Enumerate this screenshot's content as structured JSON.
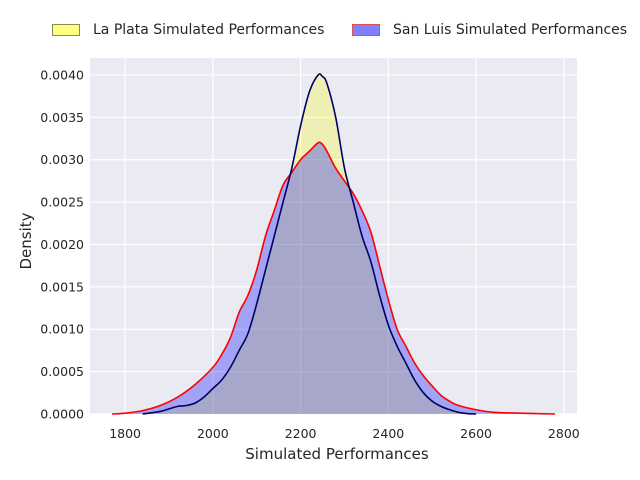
{
  "chart_data": {
    "type": "area",
    "title": "",
    "xlabel": "Simulated Performances",
    "ylabel": "Density",
    "xlim": [
      1720,
      2830
    ],
    "ylim": [
      0,
      0.0042
    ],
    "x_ticks": [
      1800,
      2000,
      2200,
      2400,
      2600,
      2800
    ],
    "y_ticks": [
      0.0,
      0.0005,
      0.001,
      0.0015,
      0.002,
      0.0025,
      0.003,
      0.0035,
      0.004
    ],
    "x_tick_labels": [
      "1800",
      "2000",
      "2200",
      "2400",
      "2600",
      "2800"
    ],
    "y_tick_labels": [
      "0.0000",
      "0.0005",
      "0.0010",
      "0.0015",
      "0.0020",
      "0.0025",
      "0.0030",
      "0.0035",
      "0.0040"
    ],
    "grid": true,
    "legend_position": "top-center",
    "background": "#eaeaf2",
    "series": [
      {
        "name": "La Plata Simulated Performances",
        "fill": "#ffff00",
        "fill_alpha": 0.25,
        "line": "#000066",
        "legend_fill": "#ffff80",
        "legend_edge": "#8a8a50",
        "points": [
          [
            1840,
            0
          ],
          [
            1880,
            3e-05
          ],
          [
            1900,
            6e-05
          ],
          [
            1920,
            9e-05
          ],
          [
            1940,
            0.0001
          ],
          [
            1960,
            0.00013
          ],
          [
            1980,
            0.0002
          ],
          [
            2000,
            0.0003
          ],
          [
            2020,
            0.0004
          ],
          [
            2040,
            0.00055
          ],
          [
            2060,
            0.00075
          ],
          [
            2080,
            0.00095
          ],
          [
            2100,
            0.0013
          ],
          [
            2120,
            0.0017
          ],
          [
            2140,
            0.0021
          ],
          [
            2160,
            0.0025
          ],
          [
            2180,
            0.0029
          ],
          [
            2200,
            0.0034
          ],
          [
            2220,
            0.0038
          ],
          [
            2240,
            0.004
          ],
          [
            2250,
            0.00398
          ],
          [
            2260,
            0.0039
          ],
          [
            2280,
            0.0035
          ],
          [
            2300,
            0.0029
          ],
          [
            2320,
            0.0025
          ],
          [
            2340,
            0.0021
          ],
          [
            2360,
            0.0018
          ],
          [
            2380,
            0.0014
          ],
          [
            2400,
            0.00105
          ],
          [
            2420,
            0.0008
          ],
          [
            2440,
            0.0006
          ],
          [
            2460,
            0.0004
          ],
          [
            2480,
            0.00025
          ],
          [
            2500,
            0.00015
          ],
          [
            2520,
            9e-05
          ],
          [
            2540,
            5e-05
          ],
          [
            2560,
            2e-05
          ],
          [
            2580,
            5e-06
          ],
          [
            2600,
            0
          ]
        ]
      },
      {
        "name": "San Luis Simulated Performances",
        "fill": "#0000ff",
        "fill_alpha": 0.3,
        "line": "#ff0000",
        "legend_fill": "#8080ff",
        "legend_edge": "#e05050",
        "points": [
          [
            1770,
            0
          ],
          [
            1800,
            1e-05
          ],
          [
            1840,
            4e-05
          ],
          [
            1880,
            0.0001
          ],
          [
            1920,
            0.0002
          ],
          [
            1960,
            0.00035
          ],
          [
            2000,
            0.00055
          ],
          [
            2020,
            0.0007
          ],
          [
            2040,
            0.0009
          ],
          [
            2060,
            0.0012
          ],
          [
            2080,
            0.0014
          ],
          [
            2100,
            0.0017
          ],
          [
            2120,
            0.0021
          ],
          [
            2140,
            0.0024
          ],
          [
            2160,
            0.0027
          ],
          [
            2180,
            0.00285
          ],
          [
            2200,
            0.003
          ],
          [
            2220,
            0.0031
          ],
          [
            2240,
            0.0032
          ],
          [
            2250,
            0.00318
          ],
          [
            2260,
            0.0031
          ],
          [
            2280,
            0.0029
          ],
          [
            2300,
            0.00275
          ],
          [
            2320,
            0.0026
          ],
          [
            2340,
            0.0024
          ],
          [
            2360,
            0.00215
          ],
          [
            2380,
            0.00175
          ],
          [
            2400,
            0.00135
          ],
          [
            2420,
            0.001
          ],
          [
            2440,
            0.0008
          ],
          [
            2460,
            0.0006
          ],
          [
            2480,
            0.00045
          ],
          [
            2500,
            0.00033
          ],
          [
            2520,
            0.00022
          ],
          [
            2540,
            0.00015
          ],
          [
            2560,
            0.0001
          ],
          [
            2600,
            5e-05
          ],
          [
            2640,
            2e-05
          ],
          [
            2700,
            1e-05
          ],
          [
            2780,
            0
          ]
        ]
      }
    ]
  }
}
